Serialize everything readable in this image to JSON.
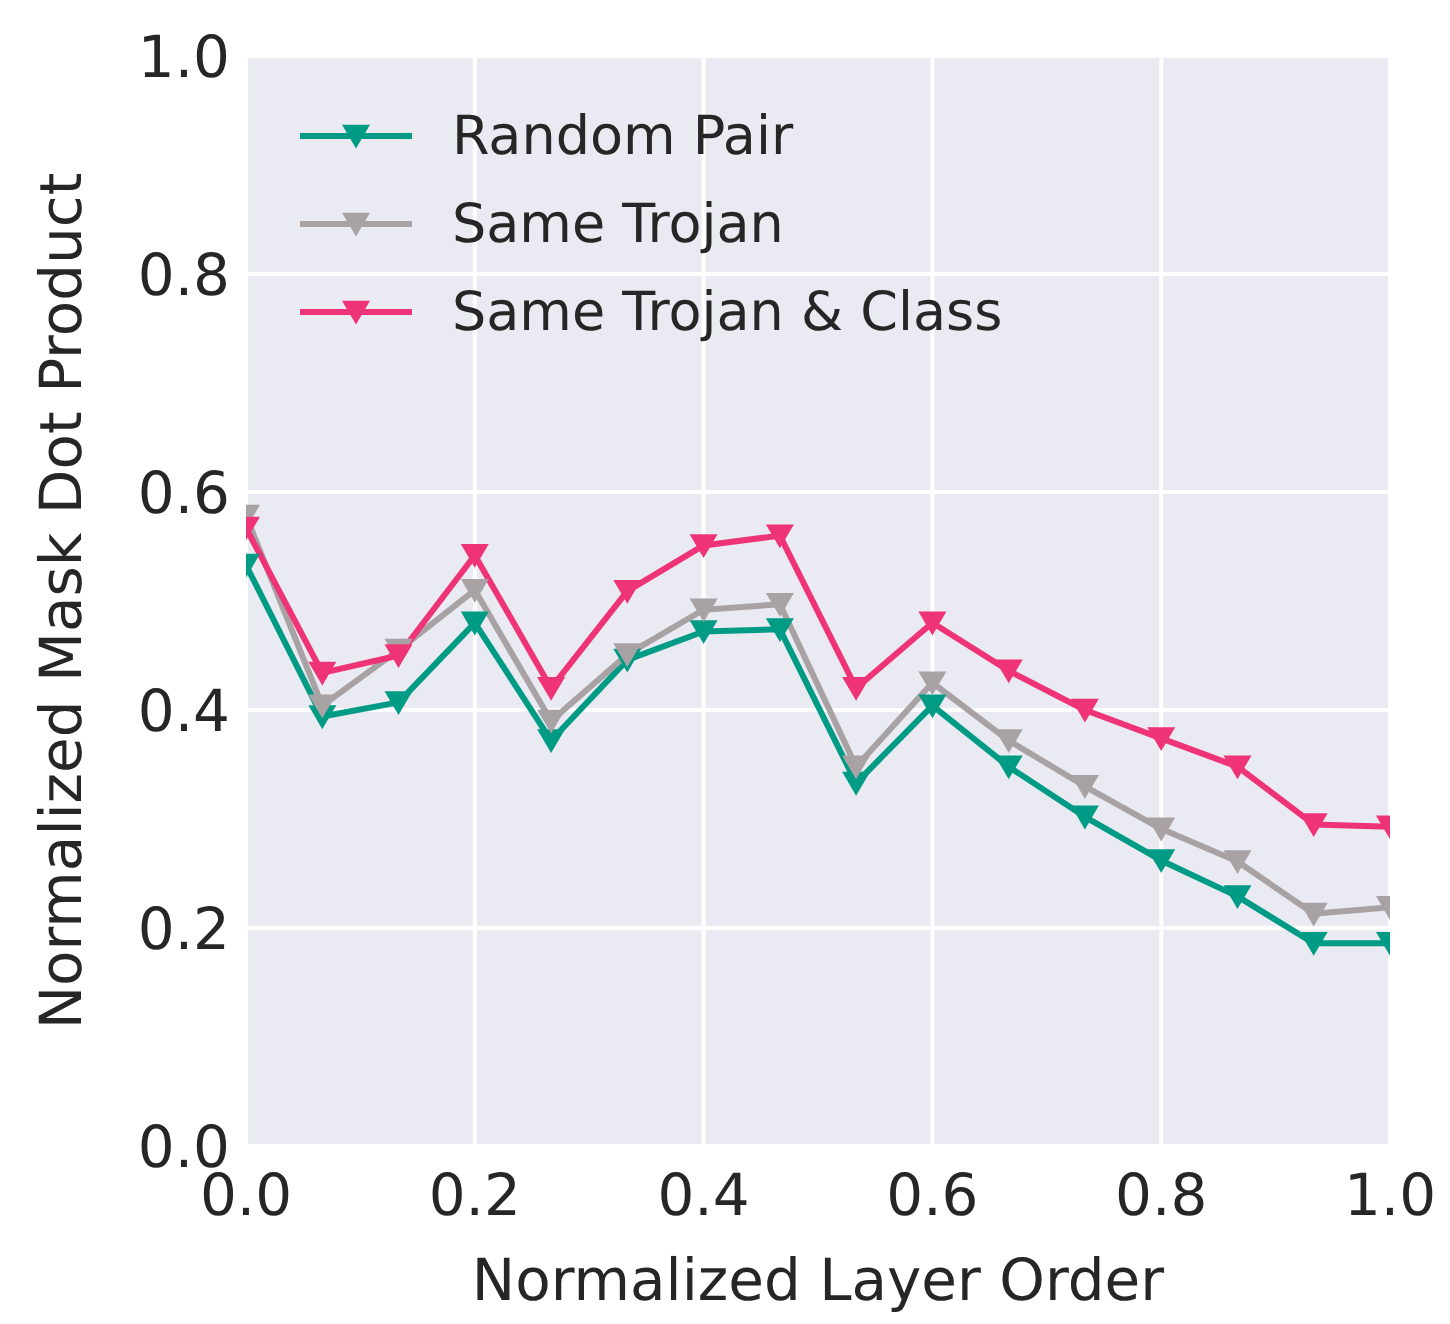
{
  "chart_data": {
    "type": "line",
    "xlabel": "Normalized Layer Order",
    "ylabel": "Normalized Mask Dot Product",
    "x": [
      0,
      0.0667,
      0.1333,
      0.2,
      0.2667,
      0.3333,
      0.4,
      0.4667,
      0.5333,
      0.6,
      0.6667,
      0.7333,
      0.8,
      0.8667,
      0.9333,
      1
    ],
    "series": [
      {
        "name": "Random Pair",
        "color": "#009b84",
        "values": [
          0.533,
          0.394,
          0.407,
          0.48,
          0.372,
          0.446,
          0.472,
          0.474,
          0.333,
          0.404,
          0.348,
          0.302,
          0.262,
          0.229,
          0.186,
          0.186
        ]
      },
      {
        "name": "Same Trojan",
        "color": "#a8a2a4",
        "values": [
          0.578,
          0.404,
          0.455,
          0.51,
          0.39,
          0.451,
          0.492,
          0.497,
          0.348,
          0.425,
          0.372,
          0.33,
          0.291,
          0.261,
          0.213,
          0.219
        ]
      },
      {
        "name": "Same Trojan & Class",
        "color": "#ee3377",
        "values": [
          0.567,
          0.434,
          0.45,
          0.542,
          0.42,
          0.509,
          0.551,
          0.56,
          0.42,
          0.48,
          0.436,
          0.4,
          0.374,
          0.348,
          0.295,
          0.293
        ]
      }
    ],
    "xlim": [
      0,
      1
    ],
    "ylim": [
      0,
      1
    ],
    "xticks": [
      {
        "value": 0,
        "label": "0.0"
      },
      {
        "value": 0.2,
        "label": "0.2"
      },
      {
        "value": 0.4,
        "label": "0.4"
      },
      {
        "value": 0.6,
        "label": "0.6"
      },
      {
        "value": 0.8,
        "label": "0.8"
      },
      {
        "value": 1,
        "label": "1.0"
      }
    ],
    "yticks": [
      {
        "value": 0,
        "label": "0.0"
      },
      {
        "value": 0.2,
        "label": "0.2"
      },
      {
        "value": 0.4,
        "label": "0.4"
      },
      {
        "value": 0.6,
        "label": "0.6"
      },
      {
        "value": 0.8,
        "label": "0.8"
      },
      {
        "value": 1,
        "label": "1.0"
      }
    ],
    "grid": true,
    "legend": "top left",
    "marker": "triangle",
    "line_style": "solid"
  }
}
